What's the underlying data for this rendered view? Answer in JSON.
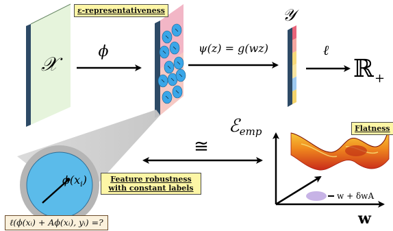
{
  "spaces": {
    "input": "𝒳",
    "labels": "𝒴",
    "reals": "ℝ",
    "reals_sub": "+"
  },
  "maps": {
    "phi": "ϕ",
    "psi": "ψ(z) = g(wz)",
    "loss": "ℓ"
  },
  "boxes": {
    "representativeness": "ε-representativeness",
    "robustness_line1": "Feature robustness",
    "robustness_line2": "with constant labels",
    "flatness": "Flatness"
  },
  "feature_point": "ϕ(x",
  "feature_point_sub": "i",
  "congruence": "≅",
  "empirical_error": "ℰ",
  "empirical_error_sub": "emp",
  "weights_axis": "w",
  "perturbation": "w + δwA",
  "loss_question": "ℓ(ϕ(xᵢ) + Aϕ(xᵢ), yᵢ) =?",
  "colors": {
    "input_face": "#e6f4dc",
    "panel_edge": "#2d4a66",
    "feature_face": "#f2b6c6",
    "feature_face_b": "#bfe3f5",
    "cluster": "#3aa6e8",
    "circle_fill": "#5bbbea",
    "circle_ring": "#b5b5b5",
    "box_fill": "#fdf6a6",
    "ellipse": "#c7b3e6",
    "label_stripes": [
      "#e8647a",
      "#f4a6a0",
      "#f6d97a",
      "#f7e4a0",
      "#9ec9ef",
      "#f3d36b"
    ]
  }
}
